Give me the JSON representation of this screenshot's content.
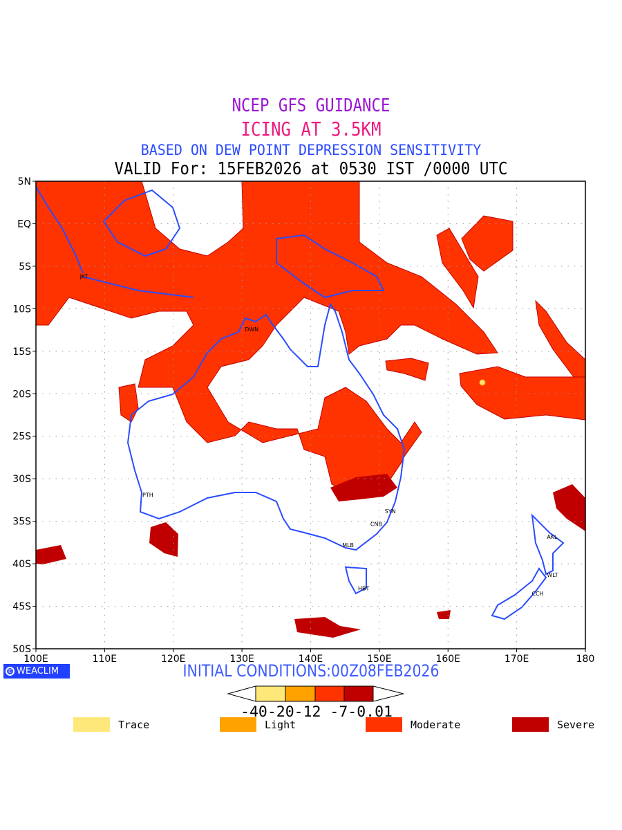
{
  "titles": {
    "line1": "NCEP GFS GUIDANCE",
    "line2": "ICING AT 3.5KM",
    "line3": "BASED ON DEW POINT DEPRESSION SENSITIVITY",
    "line4": "VALID For: 15FEB2026 at 0530 IST /0000 UTC"
  },
  "axes": {
    "lon_ticks": [
      {
        "v": 100,
        "label": "100E"
      },
      {
        "v": 110,
        "label": "110E"
      },
      {
        "v": 120,
        "label": "120E"
      },
      {
        "v": 130,
        "label": "130E"
      },
      {
        "v": 140,
        "label": "140E"
      },
      {
        "v": 150,
        "label": "150E"
      },
      {
        "v": 160,
        "label": "160E"
      },
      {
        "v": 170,
        "label": "170E"
      },
      {
        "v": 180,
        "label": "180"
      }
    ],
    "lat_ticks": [
      {
        "v": 5,
        "label": "5N"
      },
      {
        "v": 0,
        "label": "EQ"
      },
      {
        "v": -5,
        "label": "5S"
      },
      {
        "v": -10,
        "label": "10S"
      },
      {
        "v": -15,
        "label": "15S"
      },
      {
        "v": -20,
        "label": "20S"
      },
      {
        "v": -25,
        "label": "25S"
      },
      {
        "v": -30,
        "label": "30S"
      },
      {
        "v": -35,
        "label": "35S"
      },
      {
        "v": -40,
        "label": "40S"
      },
      {
        "v": -45,
        "label": "45S"
      },
      {
        "v": -50,
        "label": "50S"
      }
    ],
    "lon_range": [
      100,
      180
    ],
    "lat_range": [
      -50,
      5
    ]
  },
  "cities": [
    {
      "code": "JKT",
      "lon": 106.8,
      "lat": -6.2
    },
    {
      "code": "DWN",
      "lon": 130.8,
      "lat": -12.4
    },
    {
      "code": "PTH",
      "lon": 115.9,
      "lat": -31.9
    },
    {
      "code": "SYN",
      "lon": 151.2,
      "lat": -33.8
    },
    {
      "code": "CNB",
      "lon": 149.1,
      "lat": -35.3
    },
    {
      "code": "MLB",
      "lon": 145.0,
      "lat": -37.8
    },
    {
      "code": "HBT",
      "lon": 147.3,
      "lat": -42.9
    },
    {
      "code": "AKL",
      "lon": 174.8,
      "lat": -36.8
    },
    {
      "code": "WLT",
      "lon": 174.8,
      "lat": -41.3
    },
    {
      "code": "CCH",
      "lon": 172.6,
      "lat": -43.5
    }
  ],
  "logo": "WEACLIM",
  "initial_conditions": "INITIAL CONDITIONS:00Z08FEB2026",
  "colorbar": {
    "colors": [
      "#ffe87a",
      "#ffa200",
      "#ff3300",
      "#c00000"
    ],
    "labels": "-40-20-12 -7-0.01"
  },
  "legend": [
    {
      "label": "Trace",
      "color": "#ffe87a"
    },
    {
      "label": "Light",
      "color": "#ffa200"
    },
    {
      "label": "Moderate",
      "color": "#ff3300"
    },
    {
      "label": "Severe",
      "color": "#c00000"
    }
  ],
  "colors": {
    "coast": "#2a4cff",
    "moderate": "#ff3300",
    "severe": "#c00000",
    "trace": "#ffe87a"
  }
}
